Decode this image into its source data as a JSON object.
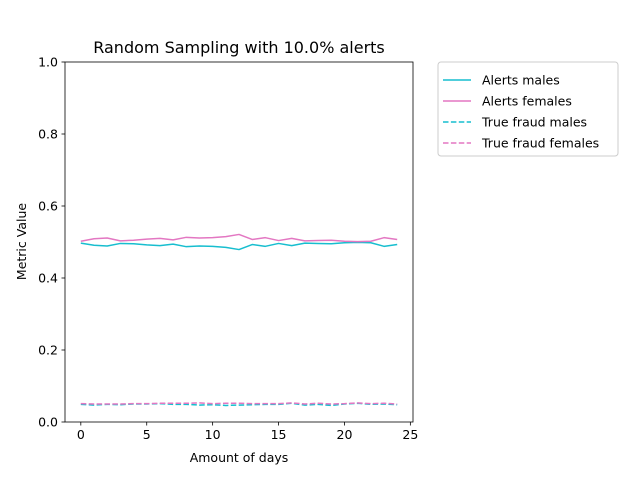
{
  "chart_data": {
    "type": "line",
    "title": "Random Sampling with 10.0% alerts",
    "xlabel": "Amount of days",
    "ylabel": "Metric Value",
    "xlim": [
      -1.2,
      25.2
    ],
    "ylim": [
      0.0,
      1.0
    ],
    "xticks": [
      0,
      5,
      10,
      15,
      20,
      25
    ],
    "yticks": [
      0.0,
      0.2,
      0.4,
      0.6,
      0.8,
      1.0
    ],
    "xtick_labels": [
      "0",
      "5",
      "10",
      "15",
      "20",
      "25"
    ],
    "ytick_labels": [
      "0.0",
      "0.2",
      "0.4",
      "0.6",
      "0.8",
      "1.0"
    ],
    "grid": false,
    "legend_position": "outside-right-top",
    "x": [
      0,
      1,
      2,
      3,
      4,
      5,
      6,
      7,
      8,
      9,
      10,
      11,
      12,
      13,
      14,
      15,
      16,
      17,
      18,
      19,
      20,
      21,
      22,
      23,
      24
    ],
    "series": [
      {
        "name": "Alerts males",
        "color": "#17becf",
        "style": "solid",
        "values": [
          0.497,
          0.491,
          0.489,
          0.496,
          0.495,
          0.492,
          0.49,
          0.494,
          0.487,
          0.489,
          0.488,
          0.485,
          0.479,
          0.493,
          0.488,
          0.496,
          0.49,
          0.497,
          0.496,
          0.495,
          0.498,
          0.499,
          0.498,
          0.488,
          0.493
        ]
      },
      {
        "name": "Alerts females",
        "color": "#e377c2",
        "style": "solid",
        "values": [
          0.502,
          0.509,
          0.511,
          0.503,
          0.505,
          0.508,
          0.51,
          0.506,
          0.513,
          0.511,
          0.512,
          0.515,
          0.521,
          0.507,
          0.512,
          0.504,
          0.51,
          0.503,
          0.504,
          0.505,
          0.502,
          0.501,
          0.502,
          0.512,
          0.507
        ]
      },
      {
        "name": "True fraud males",
        "color": "#17becf",
        "style": "dashed",
        "values": [
          0.049,
          0.047,
          0.049,
          0.048,
          0.05,
          0.05,
          0.051,
          0.049,
          0.049,
          0.047,
          0.048,
          0.046,
          0.047,
          0.048,
          0.049,
          0.049,
          0.052,
          0.047,
          0.049,
          0.046,
          0.05,
          0.052,
          0.049,
          0.05,
          0.048
        ]
      },
      {
        "name": "True fraud females",
        "color": "#e377c2",
        "style": "dashed",
        "values": [
          0.051,
          0.05,
          0.05,
          0.05,
          0.051,
          0.051,
          0.052,
          0.052,
          0.052,
          0.053,
          0.051,
          0.052,
          0.052,
          0.051,
          0.051,
          0.051,
          0.053,
          0.05,
          0.052,
          0.05,
          0.051,
          0.053,
          0.051,
          0.052,
          0.05
        ]
      }
    ]
  }
}
